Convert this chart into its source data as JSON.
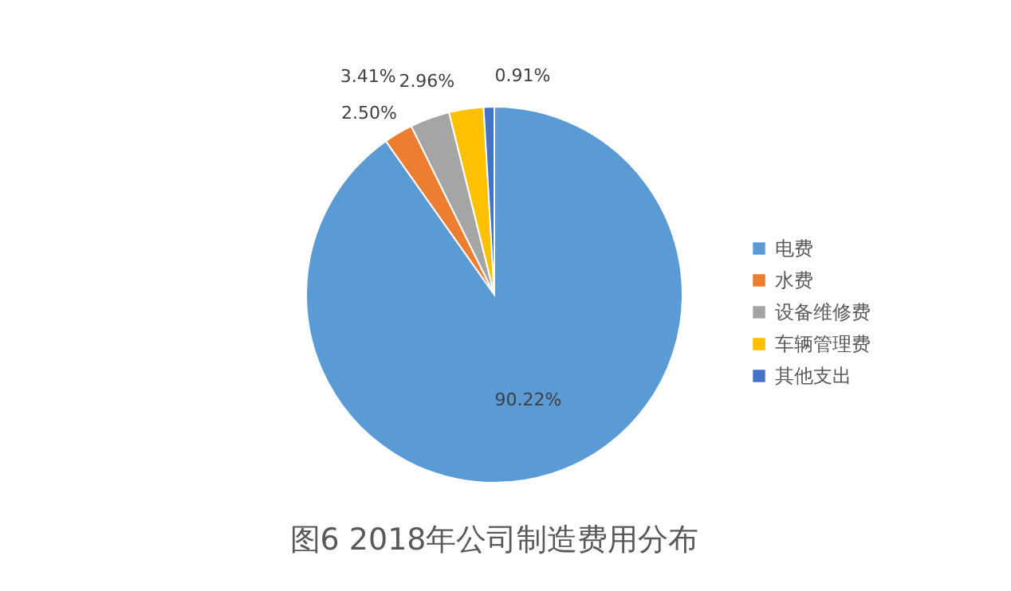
{
  "chart_data": {
    "type": "pie",
    "title": "图6 2018年公司制造费用分布",
    "categories": [
      "电费",
      "水费",
      "设备维修费",
      "车辆管理费",
      "其他支出"
    ],
    "values": [
      90.22,
      2.5,
      3.41,
      2.96,
      0.91
    ],
    "colors": [
      "#5b9bd5",
      "#ed7d31",
      "#a5a5a5",
      "#ffc000",
      "#4472c4"
    ],
    "value_labels": [
      "90.22%",
      "2.50%",
      "3.41%",
      "2.96%",
      "0.91%"
    ],
    "legend": "right"
  }
}
